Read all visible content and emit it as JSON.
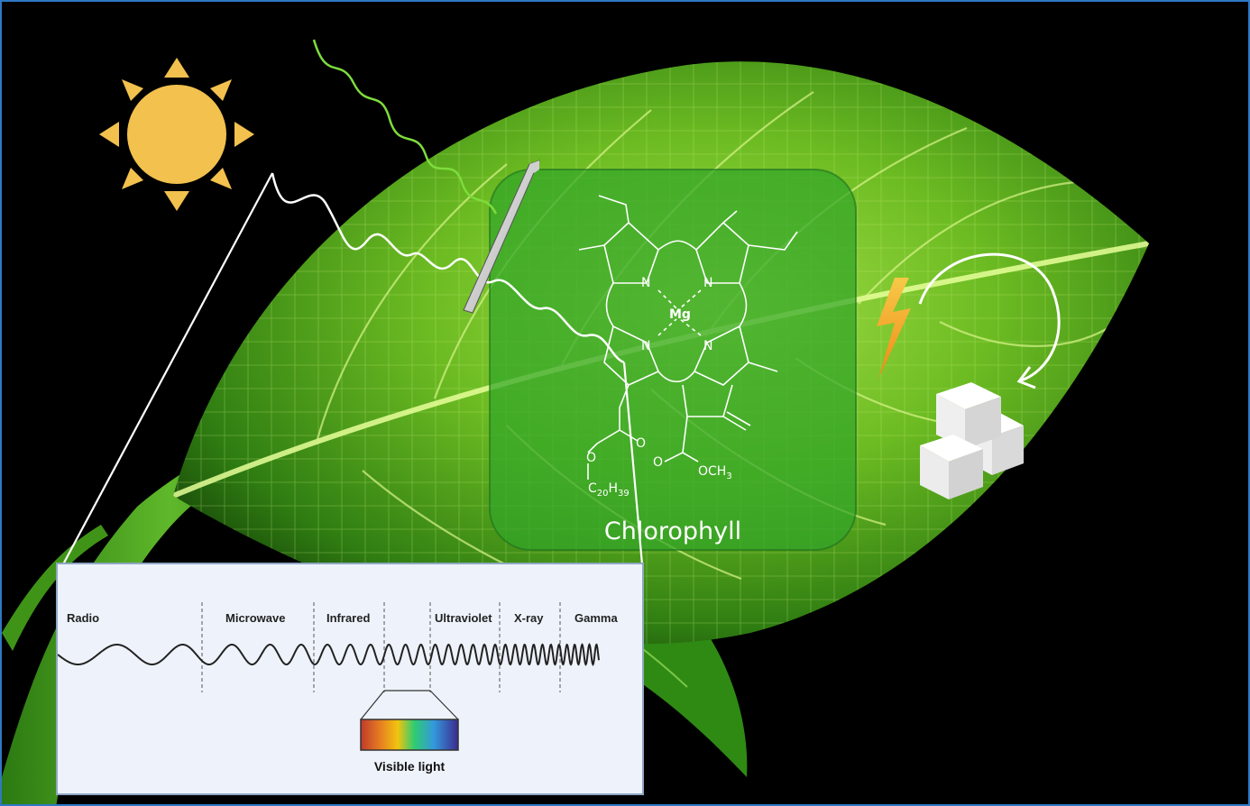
{
  "molecule": {
    "label": "Chlorophyll",
    "metal": "Mg",
    "nitrogen": "N",
    "ester_methyl": "OCH",
    "ester_methyl_sub": "3",
    "oxygen": "O",
    "phytyl_c": "C",
    "phytyl_c_sub": "20",
    "phytyl_h": "H",
    "phytyl_h_sub": "39"
  },
  "spectrum": {
    "regions": [
      "Radio",
      "Microwave",
      "Infrared",
      "Ultraviolet",
      "X-ray",
      "Gamma"
    ],
    "visible_label": "Visible light"
  },
  "icons": {
    "sun": "sun-icon",
    "energy": "lightning-bolt-icon",
    "sugar": "sugar-cubes-icon",
    "cycle": "curved-arrow-icon",
    "filter": "glass-plate-icon"
  },
  "colors": {
    "sun": "#f2c14e",
    "reflected_wave": "#7ddc3c",
    "leaf": "#5faa1e",
    "bolt": "#f5a623",
    "frame": "#2f78c4"
  }
}
